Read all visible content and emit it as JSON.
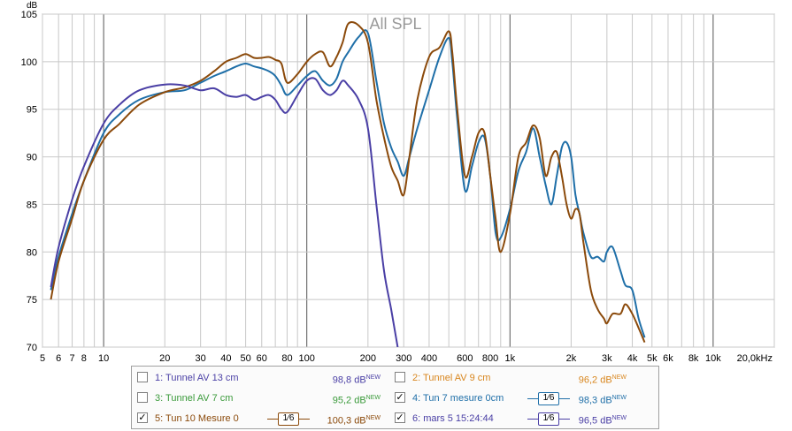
{
  "chart_data": {
    "type": "line",
    "title": "All SPL",
    "ylabel": "dB",
    "xscale": "log",
    "xlim": [
      5,
      20000
    ],
    "ylim": [
      70,
      105
    ],
    "grid": true,
    "x_tick_labels": [
      "5",
      "6",
      "7",
      "8",
      "10",
      "20",
      "30",
      "40",
      "50",
      "60",
      "80",
      "100",
      "200",
      "300",
      "400",
      "600",
      "800",
      "1k",
      "2k",
      "3k",
      "4k",
      "5k",
      "6k",
      "8k",
      "10k",
      "20,0kHz"
    ],
    "y_tick_labels": [
      "70",
      "75",
      "80",
      "85",
      "90",
      "95",
      "100",
      "105"
    ],
    "series": [
      {
        "name": "4: Tun 7  mesure 0cm",
        "color": "#1f6fa8",
        "x": [
          5.5,
          6,
          7,
          8,
          10,
          12,
          15,
          20,
          25,
          30,
          35,
          40,
          45,
          50,
          55,
          60,
          65,
          70,
          75,
          80,
          90,
          100,
          110,
          120,
          130,
          140,
          150,
          160,
          180,
          200,
          220,
          240,
          260,
          280,
          300,
          320,
          350,
          400,
          450,
          500,
          520,
          550,
          600,
          650,
          700,
          750,
          800,
          850,
          900,
          1000,
          1100,
          1200,
          1300,
          1400,
          1500,
          1600,
          1700,
          1800,
          1900,
          2000,
          2100,
          2200,
          2300,
          2500,
          2700,
          2900,
          3000,
          3200,
          3500,
          3700,
          4000,
          4300,
          4600
        ],
        "y": [
          76,
          79.5,
          84,
          87.5,
          92.5,
          94.5,
          96,
          96.8,
          97,
          97.8,
          98.5,
          99,
          99.5,
          99.8,
          99.5,
          99.3,
          99,
          98.5,
          97.5,
          96.5,
          97.5,
          98.5,
          99,
          98,
          97.5,
          98.2,
          100,
          101,
          102.6,
          103,
          98,
          93.5,
          91,
          89.5,
          88,
          90,
          93,
          97,
          100.5,
          102.5,
          100,
          94,
          86.5,
          89,
          91.5,
          92,
          88,
          82,
          81.5,
          84.5,
          88.5,
          90.5,
          93,
          90,
          87,
          85,
          88,
          91,
          91.5,
          90,
          86,
          84,
          82,
          79.5,
          79.5,
          79,
          80,
          80.5,
          78,
          76.5,
          76,
          73,
          71
        ]
      },
      {
        "name": "5: Tun 10 Mesure 0",
        "color": "#8b4a0b",
        "x": [
          5.5,
          6,
          7,
          8,
          10,
          12,
          15,
          20,
          25,
          30,
          35,
          40,
          45,
          50,
          55,
          60,
          65,
          70,
          75,
          80,
          90,
          100,
          110,
          120,
          130,
          140,
          150,
          160,
          180,
          200,
          220,
          240,
          260,
          280,
          300,
          320,
          350,
          400,
          450,
          500,
          520,
          550,
          600,
          650,
          700,
          750,
          800,
          850,
          900,
          1000,
          1100,
          1200,
          1300,
          1400,
          1500,
          1600,
          1700,
          1800,
          1900,
          2000,
          2100,
          2200,
          2300,
          2500,
          2700,
          2900,
          3000,
          3200,
          3500,
          3700,
          4000,
          4300,
          4600
        ],
        "y": [
          75,
          79,
          83.5,
          87.5,
          91.8,
          93.5,
          95.5,
          96.8,
          97.3,
          98,
          99,
          100,
          100.4,
          100.8,
          100.4,
          100.4,
          100.5,
          100.2,
          99.8,
          97.8,
          98.7,
          100,
          100.8,
          101,
          99.5,
          100.5,
          102,
          104,
          103.8,
          102,
          96,
          92,
          89,
          87.5,
          86,
          90,
          96,
          100.5,
          101.5,
          103.2,
          101,
          95,
          88,
          90,
          92.5,
          92.5,
          88,
          83.5,
          80,
          84,
          90,
          91.5,
          93.3,
          92,
          88,
          90,
          90.5,
          88,
          85,
          83.5,
          84.5,
          84,
          81,
          76,
          74,
          73,
          72.5,
          73.5,
          73.5,
          74.5,
          73.5,
          72,
          70.5
        ]
      },
      {
        "name": "6: mars 5 15:24:44",
        "color": "#4a3fa5",
        "x": [
          5.5,
          6,
          7,
          8,
          10,
          12,
          15,
          20,
          25,
          30,
          35,
          40,
          45,
          50,
          55,
          60,
          65,
          70,
          75,
          80,
          90,
          100,
          110,
          120,
          130,
          140,
          150,
          160,
          180,
          200,
          220,
          240,
          260,
          280
        ],
        "y": [
          76.3,
          80.5,
          85.5,
          89,
          93.5,
          95.5,
          97,
          97.6,
          97.5,
          97,
          97.2,
          96.5,
          96.3,
          96.5,
          96,
          96.3,
          96.5,
          96,
          95,
          94.7,
          96.5,
          98,
          98.2,
          97,
          96.5,
          97,
          98,
          97.5,
          96,
          93,
          85,
          78,
          74,
          70
        ]
      }
    ]
  },
  "legend": {
    "items": [
      {
        "label": "1: Tunnel AV 13 cm",
        "value": "98,8 dB",
        "sup": "NEW",
        "checked": "",
        "color": "#4a3fa5"
      },
      {
        "label": "2: Tunnel AV 9 cm",
        "value": "96,2 dB",
        "sup": "NEW",
        "checked": "",
        "color": "#d8861e"
      },
      {
        "label": "3: Tunnel AV 7 cm",
        "value": "95,2 dB",
        "sup": "NEW",
        "checked": "",
        "color": "#3a9a3a"
      },
      {
        "label": "4: Tun 7  mesure 0cm",
        "value": "98,3 dB",
        "sup": "NEW",
        "checked": "✓",
        "color": "#1f6fa8",
        "smoothing": "1⁄6"
      },
      {
        "label": "5: Tun 10 Mesure 0",
        "value": "100,3 dB",
        "sup": "NEW",
        "checked": "✓",
        "color": "#8b4a0b",
        "smoothing": "1⁄6"
      },
      {
        "label": "6: mars 5 15:24:44",
        "value": "96,5 dB",
        "sup": "NEW",
        "checked": "✓",
        "color": "#4a3fa5",
        "smoothing": "1⁄6"
      }
    ]
  }
}
